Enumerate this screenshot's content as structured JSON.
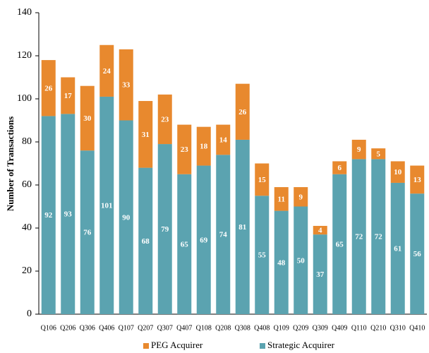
{
  "chart_data": {
    "type": "stacked-bar",
    "y_label": "Number of Transactions",
    "categories": [
      "Q106",
      "Q206",
      "Q306",
      "Q406",
      "Q107",
      "Q207",
      "Q307",
      "Q407",
      "Q108",
      "Q208",
      "Q308",
      "Q408",
      "Q109",
      "Q209",
      "Q309",
      "Q409",
      "Q110",
      "Q210",
      "Q310",
      "Q410"
    ],
    "series": [
      {
        "name": "Strategic Acquirer",
        "color": "#5ba3b0",
        "values": [
          92,
          93,
          76,
          101,
          90,
          68,
          79,
          65,
          69,
          74,
          81,
          55,
          48,
          50,
          37,
          65,
          72,
          72,
          61,
          56
        ]
      },
      {
        "name": "PEG Acquirer",
        "color": "#e8892e",
        "values": [
          26,
          17,
          30,
          24,
          33,
          31,
          23,
          23,
          18,
          14,
          26,
          15,
          11,
          9,
          4,
          6,
          9,
          5,
          10,
          13
        ]
      }
    ],
    "ylim": [
      0,
      140
    ],
    "yticks": [
      0,
      20,
      40,
      60,
      80,
      100,
      120,
      140
    ]
  }
}
